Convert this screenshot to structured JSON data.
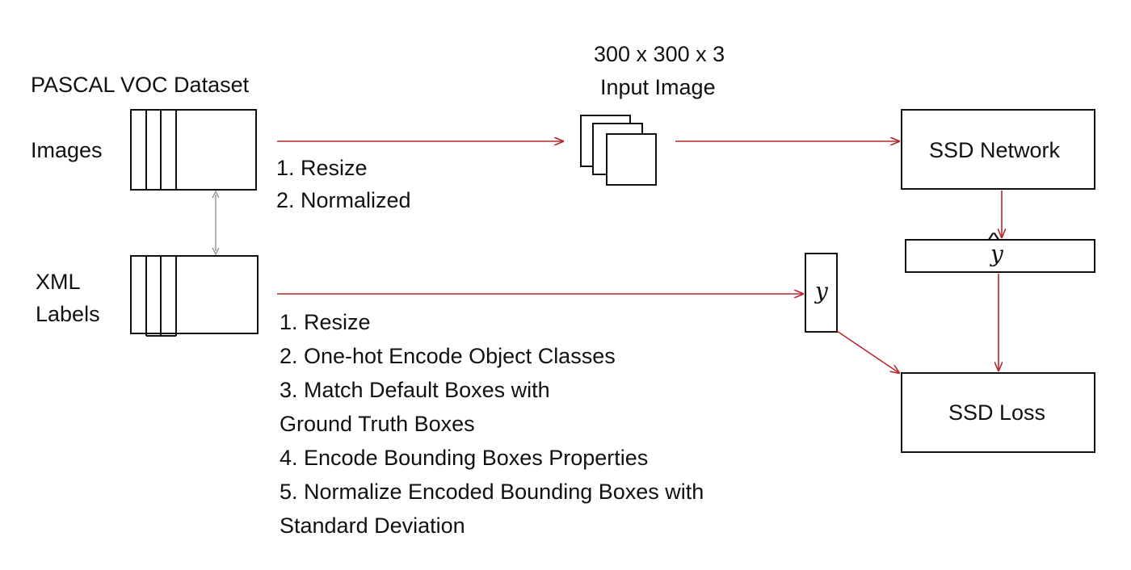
{
  "dataset": {
    "title": "PASCAL VOC Dataset",
    "images_label": "Images",
    "labels_label_line1": "XML",
    "labels_label_line2": "Labels"
  },
  "input_image": {
    "line1": "300 x 300 x 3",
    "line2": "Input Image"
  },
  "image_steps": [
    "1. Resize",
    "2. Normalized"
  ],
  "label_steps": [
    "1. Resize",
    "2. One-hot Encode Object Classes",
    "3. Match Default Boxes with",
    "Ground Truth Boxes",
    "4. Encode Bounding Boxes Properties",
    "5. Normalize Encoded Bounding Boxes with",
    "Standard Deviation"
  ],
  "network": {
    "label": "SSD Network"
  },
  "prediction": {
    "label": "y",
    "hat": "^"
  },
  "ground_truth": {
    "label": "y"
  },
  "loss": {
    "label": "SSD Loss"
  },
  "colors": {
    "arrow": "#b5282f",
    "stroke": "#111111",
    "connector": "#999999"
  }
}
